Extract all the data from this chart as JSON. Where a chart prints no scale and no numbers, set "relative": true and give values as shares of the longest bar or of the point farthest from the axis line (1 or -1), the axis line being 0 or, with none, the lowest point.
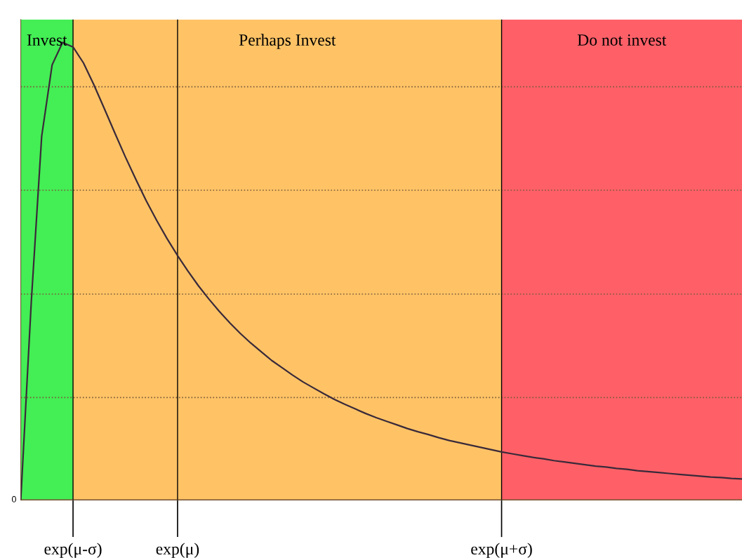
{
  "chart_data": {
    "type": "line",
    "relative": true,
    "categories": [
      null,
      null,
      null,
      null,
      null,
      "exp(μ-σ)",
      null,
      null,
      null,
      null,
      null,
      null,
      null,
      null,
      null,
      "exp(μ)",
      null,
      null,
      null,
      null,
      null,
      null,
      null,
      null,
      null,
      null,
      null,
      null,
      null,
      null,
      null,
      null,
      null,
      null,
      null,
      null,
      null,
      null,
      null,
      null,
      null,
      null,
      null,
      null,
      null,
      null,
      "exp(μ+σ)",
      null,
      null,
      null,
      null,
      null,
      null,
      null,
      null,
      null,
      null,
      null,
      null,
      null,
      null,
      null,
      null,
      null,
      null,
      null,
      null,
      null,
      null,
      null
    ],
    "series": [
      {
        "color": "#3a2a3a",
        "values": [
          0,
          0.431,
          0.795,
          0.951,
          1,
          0.99,
          0.955,
          0.907,
          0.855,
          0.802,
          0.75,
          0.701,
          0.654,
          0.611,
          0.571,
          0.534,
          0.5,
          0.468,
          0.439,
          0.412,
          0.387,
          0.364,
          0.343,
          0.324,
          0.305,
          0.289,
          0.273,
          0.258,
          0.245,
          0.232,
          0.22,
          0.209,
          0.199,
          0.189,
          0.18,
          0.172,
          0.164,
          0.156,
          0.149,
          0.143,
          0.136,
          0.13,
          0.125,
          0.12,
          0.115,
          0.11,
          0.105,
          0.101,
          0.097,
          0.093,
          0.09,
          0.086,
          0.083,
          0.08,
          0.077,
          0.074,
          0.072,
          0.069,
          0.067,
          0.064,
          0.062,
          0.06,
          0.058,
          0.056,
          0.054,
          0.052,
          0.05,
          0.049,
          0.047,
          0.046
        ]
      }
    ],
    "annotations": [
      "Invest",
      "Do not invest"
    ],
    "bands": [
      {
        "axis": "x",
        "from": "exp(μ-σ)",
        "to": "exp(μ+σ)",
        "label": "Perhaps Invest",
        "color": "#ffc366"
      }
    ],
    "ref_lines": [
      {
        "axis": "y",
        "value": 0,
        "label": "0",
        "color": "#7a5a3a",
        "line_style": "solid"
      },
      {
        "axis": "y",
        "value": 0.224,
        "label": null,
        "color": "#7a5a3a",
        "line_style": "dotted"
      },
      {
        "axis": "y",
        "value": 0.45,
        "label": null,
        "color": "#7a5a3a",
        "line_style": "dotted"
      },
      {
        "axis": "y",
        "value": 0.677,
        "label": null,
        "color": "#7a5a3a",
        "line_style": "dotted"
      },
      {
        "axis": "y",
        "value": 0.903,
        "label": null,
        "color": "#7a5a3a",
        "line_style": "dotted"
      },
      {
        "axis": "x",
        "value": "exp(μ-σ)",
        "label": null,
        "color": "#000000",
        "line_style": "solid"
      },
      {
        "axis": "x",
        "value": "exp(μ)",
        "label": null,
        "color": "#000000",
        "line_style": "solid"
      },
      {
        "axis": "x",
        "value": "exp(μ+σ)",
        "label": null,
        "color": "#000000",
        "line_style": "solid"
      }
    ],
    "grid": false,
    "legend": false,
    "marker": "none",
    "line_style": "solid"
  }
}
